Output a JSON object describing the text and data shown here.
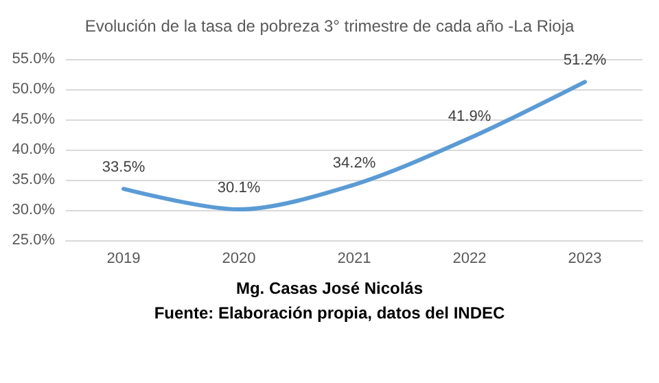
{
  "chart_data": {
    "type": "line",
    "title": "Evolución de la tasa de pobreza 3° trimestre de cada año -La Rioja",
    "categories": [
      "2019",
      "2020",
      "2021",
      "2022",
      "2023"
    ],
    "values": [
      33.5,
      30.1,
      34.2,
      41.9,
      51.2
    ],
    "value_labels": [
      "33.5%",
      "30.1%",
      "34.2%",
      "41.9%",
      "51.2%"
    ],
    "color": "#5b9bd5",
    "ylim": [
      25,
      55
    ],
    "yticks": [
      {
        "value": 25,
        "label": "25.0%"
      },
      {
        "value": 30,
        "label": "30.0%"
      },
      {
        "value": 35,
        "label": "35.0%"
      },
      {
        "value": 40,
        "label": "40.0%"
      },
      {
        "value": 45,
        "label": "45.0%"
      },
      {
        "value": 50,
        "label": "50.0%"
      },
      {
        "value": 55,
        "label": "55.0%"
      }
    ],
    "grid": "y",
    "marker": "none",
    "line_style": "solid",
    "annotations": [
      "Mg. Casas José Nicolás",
      "Fuente: Elaboración propia, datos del INDEC"
    ]
  }
}
